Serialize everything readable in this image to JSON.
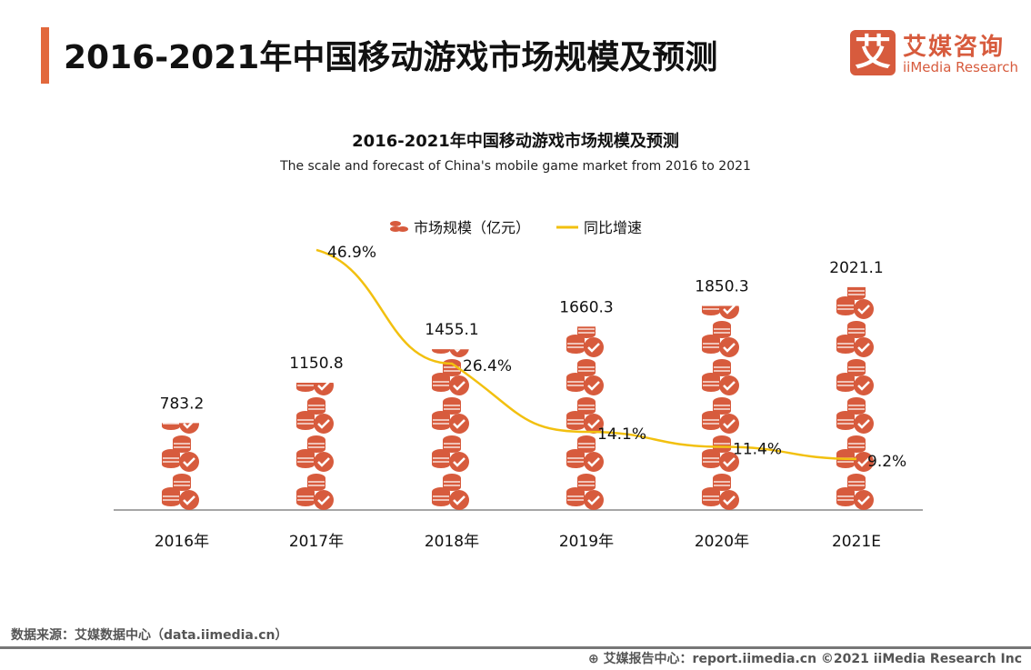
{
  "header": {
    "title": "2016-2021年中国移动游戏市场规模及预测",
    "logo_cn": "艾媒咨询",
    "logo_en": "iiMedia Research",
    "logo_mark": "艾"
  },
  "chart_data": {
    "type": "bar",
    "title": "2016-2021年中国移动游戏市场规模及预测",
    "subtitle": "The scale and forecast of China's mobile game market from 2016 to 2021",
    "categories": [
      "2016年",
      "2017年",
      "2018年",
      "2019年",
      "2020年",
      "2021E"
    ],
    "series": [
      {
        "name": "市场规模（亿元）",
        "kind": "pictogram-bar",
        "color": "#d75b3d",
        "values": [
          783.2,
          1150.8,
          1455.1,
          1660.3,
          1850.3,
          2021.1
        ],
        "labels": [
          "783.2",
          "1150.8",
          "1455.1",
          "1660.3",
          "1850.3",
          "2021.1"
        ]
      },
      {
        "name": "同比增速",
        "kind": "line",
        "color": "#f2c00f",
        "values": [
          null,
          46.9,
          26.4,
          14.1,
          11.4,
          9.2
        ],
        "labels": [
          "",
          "46.9%",
          "26.4%",
          "14.1%",
          "11.4%",
          "9.2%"
        ]
      }
    ],
    "legend": "top-center",
    "grid": false
  },
  "footer": {
    "source": "数据来源：艾媒数据中心（data.iimedia.cn）",
    "copyright": "艾媒报告中心：report.iimedia.cn   ©2021  iiMedia Research  Inc"
  }
}
